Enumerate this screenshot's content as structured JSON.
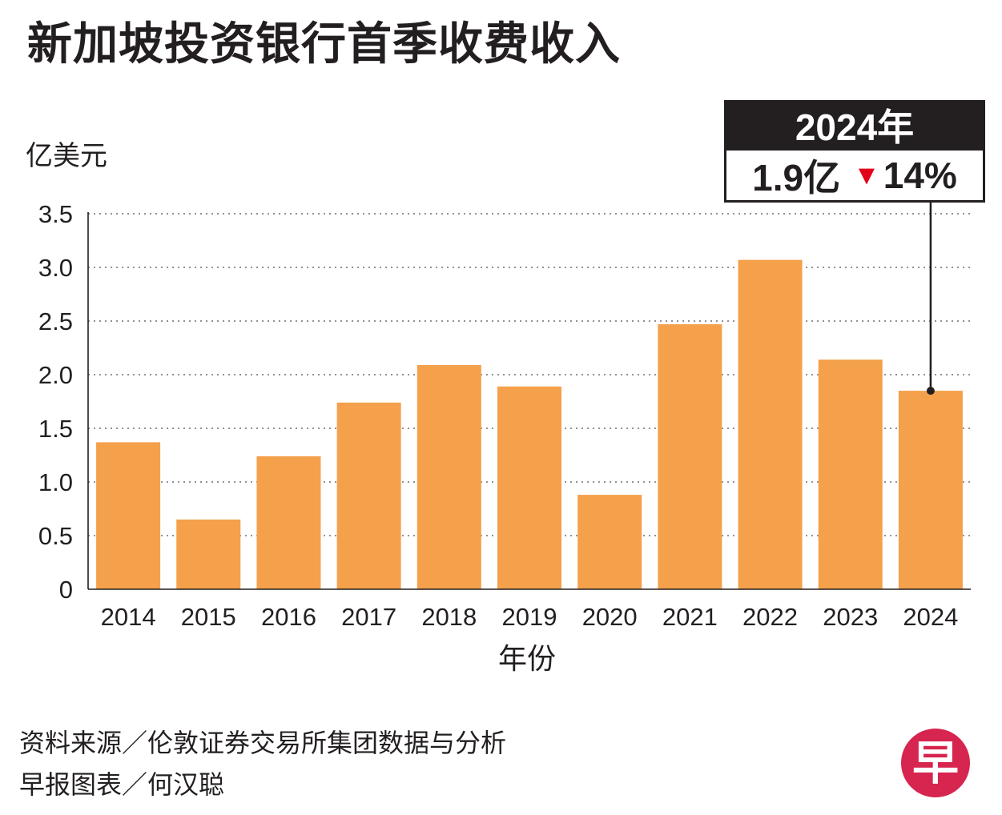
{
  "title": "新加坡投资银行首季收费收入",
  "unit_label": "亿美元",
  "x_axis_title": "年份",
  "callout": {
    "year": "2024年",
    "value": "1.9亿",
    "change_symbol": "▼",
    "change": "14%"
  },
  "footer": {
    "source": "资料来源／伦敦证券交易所集团数据与分析",
    "credit": "早报图表／何汉聪"
  },
  "logo_char": "早",
  "colors": {
    "bar": "#f5a04b",
    "text": "#231f20",
    "down_arrow": "#e3001b",
    "logo_bg": "#d6254f"
  },
  "chart_data": {
    "type": "bar",
    "title": "新加坡投资银行首季收费收入",
    "xlabel": "年份",
    "ylabel": "亿美元",
    "categories": [
      "2014",
      "2015",
      "2016",
      "2017",
      "2018",
      "2019",
      "2020",
      "2021",
      "2022",
      "2023",
      "2024"
    ],
    "values": [
      1.37,
      0.65,
      1.24,
      1.74,
      2.09,
      1.89,
      0.88,
      2.47,
      3.07,
      2.14,
      1.85
    ],
    "y_ticks": [
      "0",
      "0.5",
      "1.0",
      "1.5",
      "2.0",
      "2.5",
      "3.0",
      "3.5"
    ],
    "ylim": [
      0,
      3.5
    ],
    "grid": "dotted horizontal",
    "highlight_index": 10
  }
}
